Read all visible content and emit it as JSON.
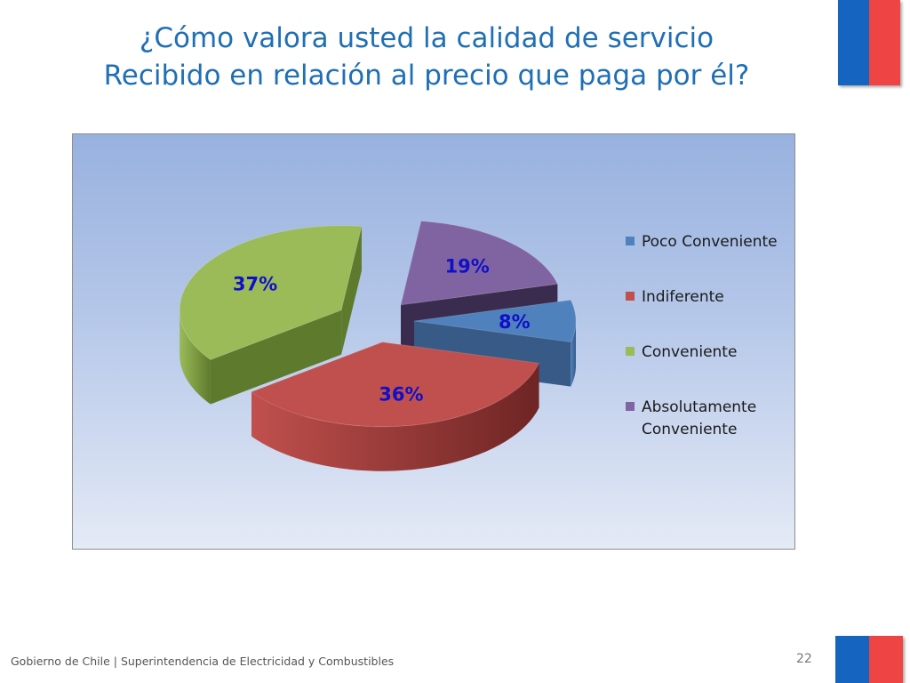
{
  "slide": {
    "title_line1": "¿Cómo valora usted la calidad de servicio",
    "title_line2": "Recibido en relación al precio que paga por él?",
    "footer": "Gobierno de Chile | Superintendencia de Electricidad y Combustibles",
    "page_number": "22"
  },
  "colors": {
    "title": "#1F6FB5",
    "flag_blue": "#1565C0",
    "flag_red": "#EF4444",
    "data_label": "#1010C8"
  },
  "chart_data": {
    "type": "pie",
    "title": "",
    "exploded": true,
    "three_d": true,
    "legend_position": "right",
    "slices": [
      {
        "name": "Poco Conveniente",
        "value": 8,
        "label": "8%",
        "color": "#4F81BD",
        "side_color": "#375A86"
      },
      {
        "name": "Indiferente",
        "value": 36,
        "label": "36%",
        "color": "#C0504D",
        "side_color": "#6E2524"
      },
      {
        "name": "Conveniente",
        "value": 37,
        "label": "37%",
        "color": "#9BBB59",
        "side_color": "#5E7A2C"
      },
      {
        "name": "Absolutamente Conveniente",
        "value": 19,
        "label": "19%",
        "color": "#8064A2",
        "side_color": "#3A2C4E"
      }
    ],
    "legend": [
      {
        "lines": [
          "Poco Conveniente"
        ],
        "color": "#4F81BD"
      },
      {
        "lines": [
          "Indiferente"
        ],
        "color": "#C0504D"
      },
      {
        "lines": [
          "Conveniente"
        ],
        "color": "#9BBB59"
      },
      {
        "lines": [
          "Absolutamente",
          "Conveniente"
        ],
        "color": "#8064A2"
      }
    ]
  }
}
